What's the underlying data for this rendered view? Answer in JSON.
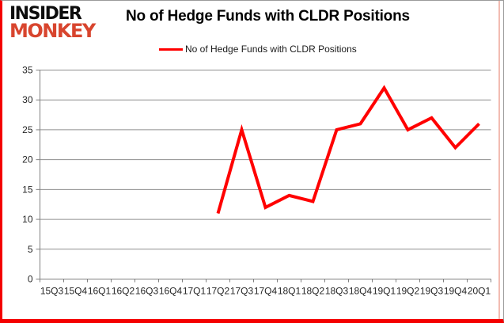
{
  "header": {
    "logo_line1": "INSIDER",
    "logo_line2": "MONKEY",
    "title": "No of Hedge Funds with CLDR Positions"
  },
  "legend": {
    "label": "No of Hedge Funds with CLDR Positions"
  },
  "chart_data": {
    "type": "line",
    "title": "No of Hedge Funds with CLDR Positions",
    "categories": [
      "15Q3",
      "15Q4",
      "16Q1",
      "16Q2",
      "16Q3",
      "16Q4",
      "17Q1",
      "17Q2",
      "17Q3",
      "17Q4",
      "18Q1",
      "18Q2",
      "18Q3",
      "18Q4",
      "19Q1",
      "19Q2",
      "19Q3",
      "19Q4",
      "20Q1"
    ],
    "series": [
      {
        "name": "No of Hedge Funds with CLDR Positions",
        "color": "#ff0000",
        "values": [
          null,
          null,
          null,
          null,
          null,
          null,
          null,
          11,
          25,
          12,
          14,
          13,
          25,
          26,
          32,
          25,
          27,
          22,
          26
        ]
      }
    ],
    "xlabel": "",
    "ylabel": "",
    "ylim": [
      0,
      35
    ],
    "yticks": [
      0,
      5,
      10,
      15,
      20,
      25,
      30,
      35
    ],
    "grid": true,
    "legend_position": "top-center"
  },
  "colors": {
    "series_red": "#ff0000",
    "grid": "#8f8f8f",
    "axis": "#808080",
    "logo_red": "#d8452e",
    "border_red": "#f40000",
    "label_text": "#262626"
  }
}
